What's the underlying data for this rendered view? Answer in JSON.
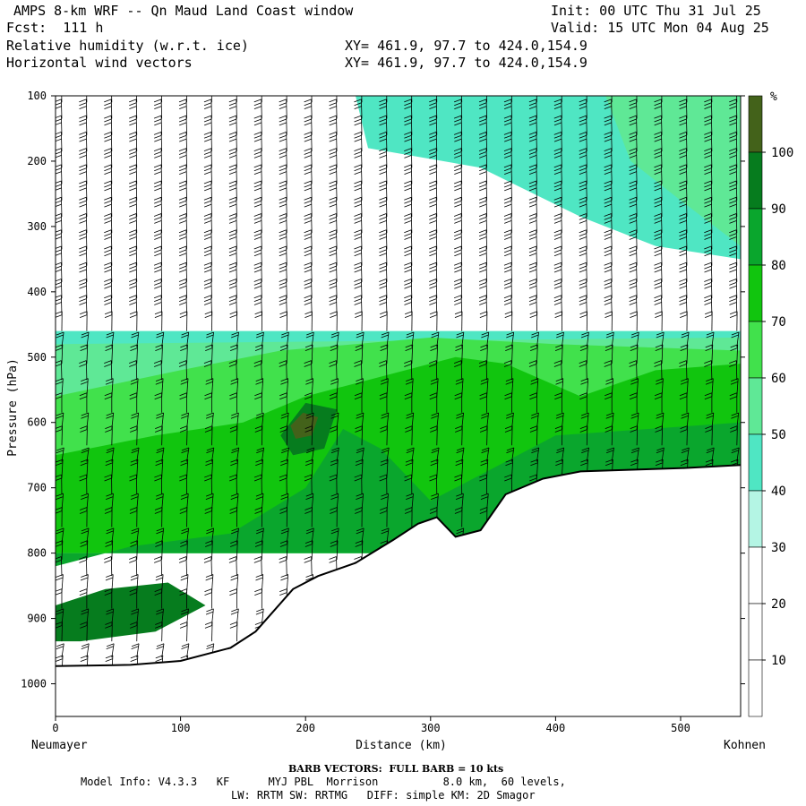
{
  "header": {
    "line1_left": "AMPS 8-km WRF -- Qn Maud Land Coast window",
    "line1_right": "Init: 00 UTC Thu 31 Jul 25",
    "line2_left": "Fcst:  111 h",
    "line2_right": "Valid: 15 UTC Mon 04 Aug 25",
    "line3_left": "Relative humidity (w.r.t. ice)",
    "line3_mid": "XY= 461.9, 97.7 to 424.0,154.9",
    "line4_left": "Horizontal wind vectors",
    "line4_mid": "XY= 461.9, 97.7 to 424.0,154.9"
  },
  "footer": {
    "barb_note": "BARB VECTORS:  FULL BARB = 10 kts",
    "model_info": "Model Info: V4.3.3   KF      MYJ PBL  Morrison          8.0 km,  60 levels,",
    "model_info2": "LW: RRTM SW: RRTMG   DIFF: simple KM: 2D Smagor"
  },
  "chart_data": {
    "type": "heatmap",
    "xlabel": "Distance (km)",
    "ylabel": "Pressure (hPa)",
    "x_left_label": "Neumayer",
    "x_right_label": "Kohnen",
    "xlim": [
      0,
      548
    ],
    "ylim": [
      1050,
      100
    ],
    "x_ticks": [
      0,
      100,
      200,
      300,
      400,
      500
    ],
    "y_ticks": [
      100,
      200,
      300,
      400,
      500,
      600,
      700,
      800,
      900,
      1000
    ],
    "colorbar": {
      "unit": "%",
      "levels": [
        10,
        20,
        30,
        40,
        50,
        60,
        70,
        80,
        90,
        100
      ],
      "colors": [
        "#ffffff",
        "#ffffff",
        "#ffffff",
        "#b4f5e4",
        "#4fe6c3",
        "#5fe896",
        "#41e14c",
        "#11c50e",
        "#0aa62d",
        "#067c1e",
        "#43621a"
      ]
    },
    "terrain": [
      {
        "x": 0,
        "p": 973
      },
      {
        "x": 60,
        "p": 971
      },
      {
        "x": 100,
        "p": 965
      },
      {
        "x": 140,
        "p": 945
      },
      {
        "x": 160,
        "p": 920
      },
      {
        "x": 190,
        "p": 855
      },
      {
        "x": 210,
        "p": 835
      },
      {
        "x": 240,
        "p": 815
      },
      {
        "x": 270,
        "p": 780
      },
      {
        "x": 290,
        "p": 755
      },
      {
        "x": 305,
        "p": 745
      },
      {
        "x": 320,
        "p": 775
      },
      {
        "x": 340,
        "p": 765
      },
      {
        "x": 360,
        "p": 710
      },
      {
        "x": 390,
        "p": 686
      },
      {
        "x": 420,
        "p": 675
      },
      {
        "x": 500,
        "p": 670
      },
      {
        "x": 548,
        "p": 665
      }
    ],
    "rh_regions": [
      {
        "level": 40,
        "points": [
          [
            240,
            100
          ],
          [
            548,
            100
          ],
          [
            548,
            350
          ],
          [
            480,
            330
          ],
          [
            420,
            285
          ],
          [
            340,
            210
          ],
          [
            250,
            180
          ]
        ]
      },
      {
        "level": 50,
        "points": [
          [
            440,
            100
          ],
          [
            548,
            100
          ],
          [
            548,
            330
          ],
          [
            500,
            260
          ],
          [
            460,
            200
          ]
        ]
      },
      {
        "level": 40,
        "points": [
          [
            0,
            460
          ],
          [
            548,
            460
          ],
          [
            548,
            800
          ],
          [
            0,
            800
          ]
        ]
      },
      {
        "level": 50,
        "points": [
          [
            0,
            480
          ],
          [
            548,
            470
          ],
          [
            548,
            800
          ],
          [
            0,
            800
          ]
        ]
      },
      {
        "level": 60,
        "points": [
          [
            0,
            560
          ],
          [
            100,
            520
          ],
          [
            180,
            490
          ],
          [
            300,
            470
          ],
          [
            400,
            480
          ],
          [
            548,
            490
          ],
          [
            548,
            800
          ],
          [
            0,
            800
          ]
        ]
      },
      {
        "level": 70,
        "points": [
          [
            0,
            650
          ],
          [
            80,
            620
          ],
          [
            150,
            600
          ],
          [
            200,
            560
          ],
          [
            280,
            520
          ],
          [
            320,
            500
          ],
          [
            360,
            510
          ],
          [
            420,
            560
          ],
          [
            480,
            520
          ],
          [
            548,
            510
          ],
          [
            548,
            800
          ],
          [
            0,
            800
          ]
        ]
      },
      {
        "level": 80,
        "points": [
          [
            0,
            820
          ],
          [
            60,
            790
          ],
          [
            140,
            770
          ],
          [
            200,
            700
          ],
          [
            230,
            610
          ],
          [
            260,
            640
          ],
          [
            300,
            720
          ],
          [
            340,
            680
          ],
          [
            400,
            620
          ],
          [
            548,
            600
          ],
          [
            548,
            800
          ],
          [
            0,
            800
          ]
        ]
      },
      {
        "level": 90,
        "points": [
          [
            180,
            620
          ],
          [
            200,
            570
          ],
          [
            225,
            580
          ],
          [
            215,
            640
          ],
          [
            190,
            650
          ]
        ]
      },
      {
        "level": 100,
        "points": [
          [
            188,
            605
          ],
          [
            198,
            585
          ],
          [
            210,
            592
          ],
          [
            205,
            620
          ],
          [
            192,
            625
          ]
        ]
      },
      {
        "level": 90,
        "points": [
          [
            0,
            880
          ],
          [
            40,
            855
          ],
          [
            90,
            845
          ],
          [
            120,
            880
          ],
          [
            80,
            920
          ],
          [
            20,
            935
          ],
          [
            0,
            935
          ]
        ]
      }
    ],
    "wind_barbs": {
      "full_barb_kts": 10,
      "x_spacing_km": 20,
      "p_spacing_hpa": 25
    }
  }
}
